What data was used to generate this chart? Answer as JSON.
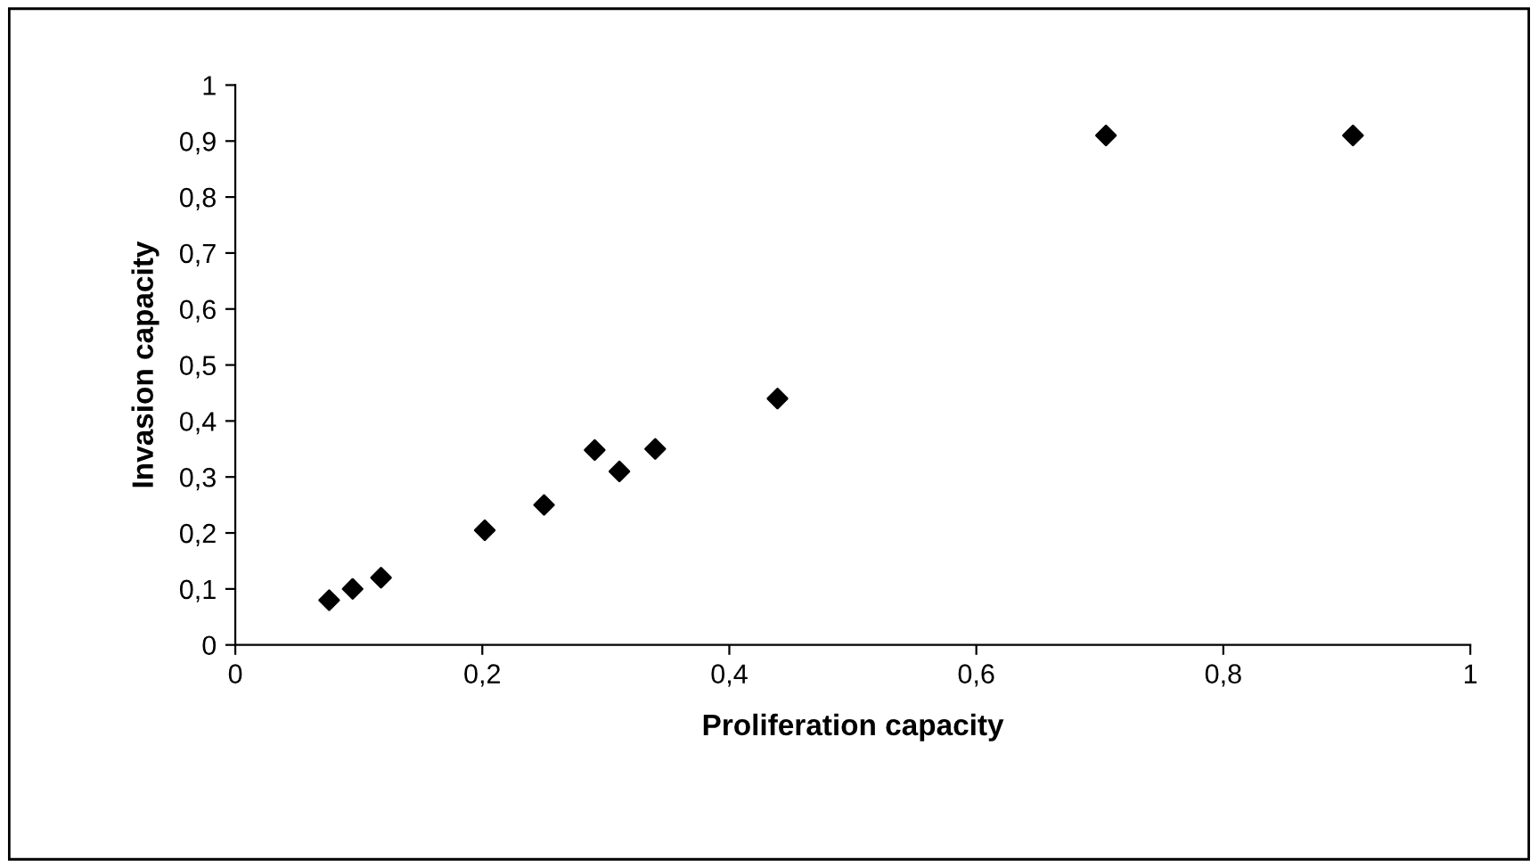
{
  "chart_data": {
    "type": "scatter",
    "xlabel": "Proliferation capacity",
    "ylabel": "Invasion capacity",
    "x": [
      0.076,
      0.095,
      0.118,
      0.202,
      0.25,
      0.291,
      0.311,
      0.34,
      0.439,
      0.705,
      0.905
    ],
    "values": [
      0.08,
      0.1,
      0.12,
      0.205,
      0.25,
      0.348,
      0.31,
      0.35,
      0.44,
      0.91,
      0.91
    ],
    "color": "#000000",
    "marker": "diamond",
    "xlim": [
      0,
      1
    ],
    "ylim": [
      0,
      1
    ],
    "xticks": [
      0,
      {
        "value": 0.2,
        "label": "0,2"
      },
      {
        "value": 0.4,
        "label": "0,4"
      },
      {
        "value": 0.6,
        "label": "0,6"
      },
      {
        "value": 0.8,
        "label": "0,8"
      },
      1
    ],
    "yticks": [
      0,
      {
        "value": 0.1,
        "label": "0,1"
      },
      {
        "value": 0.2,
        "label": "0,2"
      },
      {
        "value": 0.3,
        "label": "0,3"
      },
      {
        "value": 0.4,
        "label": "0,4"
      },
      {
        "value": 0.5,
        "label": "0,5"
      },
      {
        "value": 0.6,
        "label": "0,6"
      },
      {
        "value": 0.7,
        "label": "0,7"
      },
      {
        "value": 0.8,
        "label": "0,8"
      },
      {
        "value": 0.9,
        "label": "0,9"
      },
      1
    ],
    "grid": false
  }
}
